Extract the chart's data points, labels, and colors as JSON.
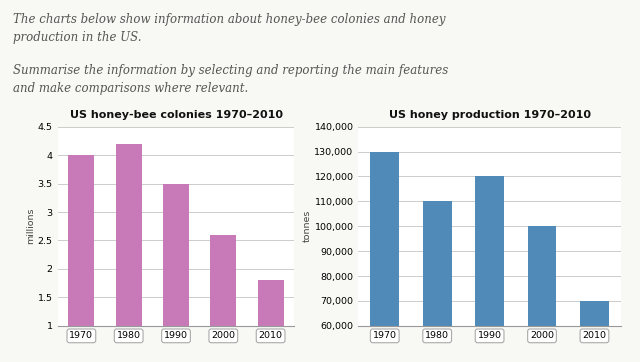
{
  "title1": "US honey-bee colonies 1970–2010",
  "title2": "US honey production 1970–2010",
  "years": [
    "1970",
    "1980",
    "1990",
    "2000",
    "2010"
  ],
  "colonies_values": [
    4.0,
    4.2,
    3.5,
    2.6,
    1.8
  ],
  "production_values": [
    130000,
    110000,
    120000,
    100000,
    70000
  ],
  "colonies_color": "#c87ab8",
  "production_color": "#4f8ab8",
  "colonies_ylim": [
    1,
    4.5
  ],
  "colonies_yticks": [
    1,
    1.5,
    2,
    2.5,
    3,
    3.5,
    4,
    4.5
  ],
  "production_ylim": [
    60000,
    140000
  ],
  "production_yticks": [
    60000,
    70000,
    80000,
    90000,
    100000,
    110000,
    120000,
    130000,
    140000
  ],
  "colonies_ylabel": "millions",
  "production_ylabel": "tonnes",
  "header_line1": "The charts below show information about honey-bee colonies and honey",
  "header_line2": "production in the US.",
  "header_line3": "Summarise the information by selecting and reporting the main features",
  "header_line4": "and make comparisons where relevant.",
  "bg_color": "#f8f8f4",
  "chart_bg": "#ffffff",
  "grid_color": "#cccccc",
  "bar_width": 0.55,
  "header_fontsize": 8.5,
  "title_fontsize": 8.0,
  "tick_fontsize": 6.8,
  "ylabel_fontsize": 6.8
}
